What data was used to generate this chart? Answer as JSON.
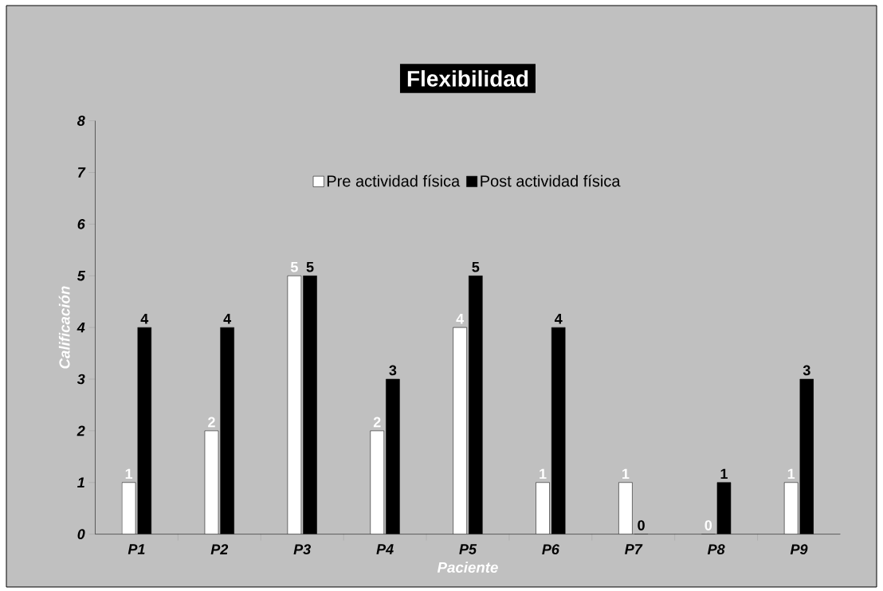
{
  "chart_data": {
    "type": "bar",
    "title": "Flexibilidad",
    "xlabel": "Paciente",
    "ylabel": "Calificación",
    "categories": [
      "P1",
      "P2",
      "P3",
      "P4",
      "P5",
      "P6",
      "P7",
      "P8",
      "P9"
    ],
    "series": [
      {
        "name": "Pre actividad física",
        "color": "#ffffff",
        "values": [
          1,
          2,
          5,
          2,
          4,
          1,
          1,
          0,
          1
        ]
      },
      {
        "name": "Post actividad física",
        "color": "#000000",
        "values": [
          4,
          4,
          5,
          3,
          5,
          4,
          0,
          1,
          3
        ]
      }
    ],
    "ylim": [
      0,
      8
    ],
    "yticks": [
      0,
      1,
      2,
      3,
      4,
      5,
      6,
      7,
      8
    ],
    "data_labels": true,
    "legend": "top"
  }
}
